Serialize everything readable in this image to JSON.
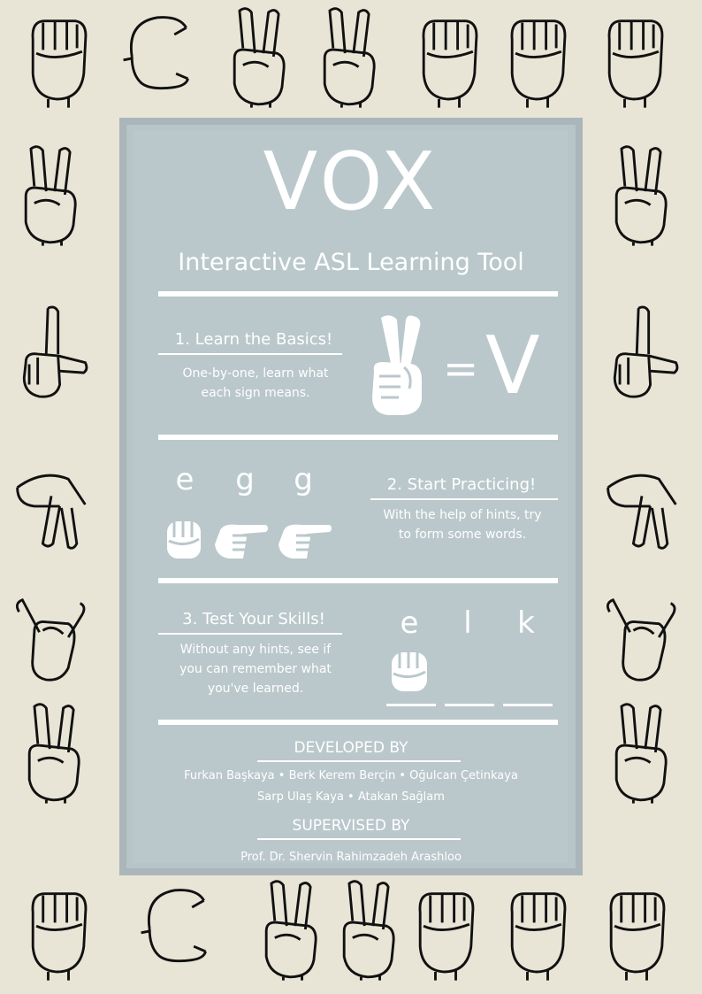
{
  "title": "VOX",
  "subtitle": "Interactive ASL Learning Tool",
  "step1": {
    "heading": "1. Learn the Basics!",
    "line1": "One-by-one, learn what",
    "line2": "each sign means.",
    "equals": "=",
    "letter": "V"
  },
  "step2": {
    "heading": "2. Start Practicing!",
    "line1": "With the help of hints, try",
    "line2": "to form some words.",
    "letters": [
      "e",
      "g",
      "g"
    ]
  },
  "step3": {
    "heading": "3. Test Your Skills!",
    "line1": "Without any hints, see if",
    "line2": "you can remember what",
    "line3": "you've learned.",
    "letters": [
      "e",
      "l",
      "k"
    ]
  },
  "credits": {
    "developed_heading": "DEVELOPED BY",
    "developers_line1": "Furkan Başkaya • Berk Kerem Berçin • Oğulcan Çetinkaya",
    "developers_line2": "Sarp Ulaş Kaya • Atakan Sağlam",
    "supervised_heading": "SUPERVISED BY",
    "supervisor": "Prof. Dr. Shervin Rahimzadeh Arashloo"
  },
  "colors": {
    "background": "#e8e5d6",
    "panel": "#bac8cb",
    "text": "#ffffff",
    "ink": "#111111"
  }
}
